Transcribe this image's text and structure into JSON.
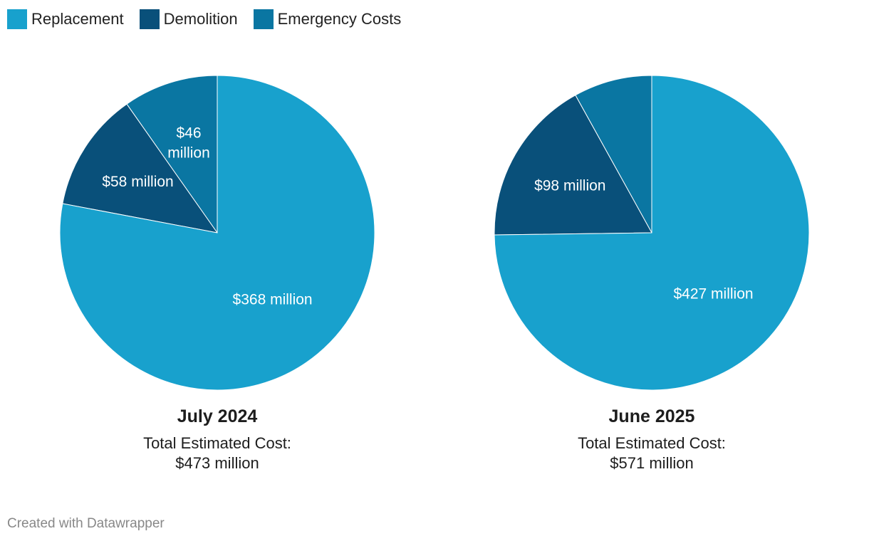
{
  "legend": [
    {
      "label": "Replacement",
      "color": "#18a1cd"
    },
    {
      "label": "Demolition",
      "color": "#09507a"
    },
    {
      "label": "Emergency Costs",
      "color": "#0a76a2"
    }
  ],
  "chart_data": [
    {
      "type": "pie",
      "title": "July 2024",
      "subtitle_line1": "Total Estimated Cost:",
      "subtitle_line2": "$473 million",
      "slices": [
        {
          "name": "Emergency Costs",
          "value": 46,
          "label_lines": [
            "$46",
            "million"
          ]
        },
        {
          "name": "Demolition",
          "value": 58,
          "label_lines": [
            "$58 million"
          ]
        },
        {
          "name": "Replacement",
          "value": 368,
          "label_lines": [
            "$368 million"
          ]
        }
      ]
    },
    {
      "type": "pie",
      "title": "June 2025",
      "subtitle_line1": "Total Estimated Cost:",
      "subtitle_line2": "$571 million",
      "slices": [
        {
          "name": "Emergency Costs",
          "value": 46,
          "label_lines": []
        },
        {
          "name": "Demolition",
          "value": 98,
          "label_lines": [
            "$98 million"
          ]
        },
        {
          "name": "Replacement",
          "value": 427,
          "label_lines": [
            "$427 million"
          ]
        }
      ]
    }
  ],
  "footer": "Created with Datawrapper"
}
